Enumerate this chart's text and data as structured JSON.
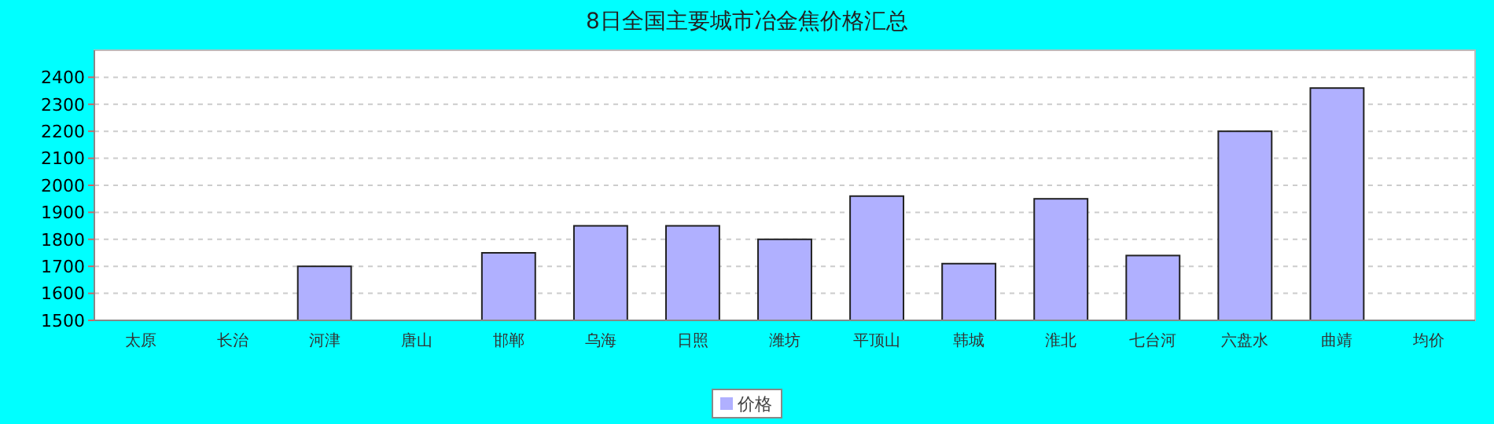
{
  "chart_data": {
    "type": "bar",
    "title": "8日全国主要城市冶金焦价格汇总",
    "categories": [
      "太原",
      "长治",
      "河津",
      "唐山",
      "邯郸",
      "乌海",
      "日照",
      "潍坊",
      "平顶山",
      "韩城",
      "淮北",
      "七台河",
      "六盘水",
      "曲靖",
      "均价"
    ],
    "series": [
      {
        "name": "价格",
        "color": "#b0b0ff",
        "values": [
          null,
          null,
          1700,
          null,
          1750,
          1850,
          1850,
          1800,
          1960,
          1710,
          1950,
          1740,
          2200,
          2360,
          null
        ]
      }
    ],
    "ylim": [
      1500,
      2500
    ],
    "yticks": [
      1500,
      1600,
      1700,
      1800,
      1900,
      2000,
      2100,
      2200,
      2300,
      2400
    ],
    "grid": "y",
    "legend": "bottom"
  }
}
